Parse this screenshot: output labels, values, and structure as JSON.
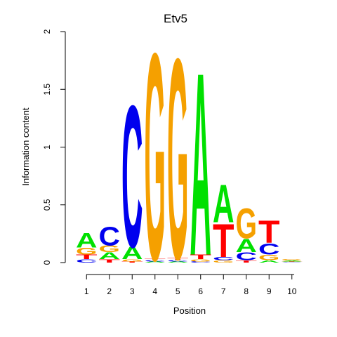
{
  "chart_data": {
    "type": "sequence-logo",
    "title": "Etv5",
    "xlabel": "Position",
    "ylabel": "Information content",
    "ylim": [
      0,
      2
    ],
    "yticks": [
      {
        "value": 0,
        "label": "0"
      },
      {
        "value": 0.5,
        "label": "0.5"
      },
      {
        "value": 1,
        "label": "1"
      },
      {
        "value": 1.5,
        "label": "1.5"
      },
      {
        "value": 2,
        "label": "2"
      }
    ],
    "positions": [
      "1",
      "2",
      "3",
      "4",
      "5",
      "6",
      "7",
      "8",
      "9",
      "10"
    ],
    "colors": {
      "A": "#00e000",
      "C": "#0000ee",
      "G": "#f5a000",
      "T": "#ff0000"
    },
    "stacks": [
      [
        {
          "base": "C",
          "height": 0.03
        },
        {
          "base": "T",
          "height": 0.04
        },
        {
          "base": "G",
          "height": 0.06
        },
        {
          "base": "A",
          "height": 0.13
        }
      ],
      [
        {
          "base": "T",
          "height": 0.03
        },
        {
          "base": "A",
          "height": 0.06
        },
        {
          "base": "G",
          "height": 0.06
        },
        {
          "base": "C",
          "height": 0.17
        }
      ],
      [
        {
          "base": "T",
          "height": 0.01
        },
        {
          "base": "G",
          "height": 0.02
        },
        {
          "base": "A",
          "height": 0.11
        },
        {
          "base": "C",
          "height": 1.28
        }
      ],
      [
        {
          "base": "A",
          "height": 0.01
        },
        {
          "base": "C",
          "height": 0.01
        },
        {
          "base": "T",
          "height": 0.01
        },
        {
          "base": "G",
          "height": 1.87
        }
      ],
      [
        {
          "base": "A",
          "height": 0.01
        },
        {
          "base": "C",
          "height": 0.01
        },
        {
          "base": "T",
          "height": 0.02
        },
        {
          "base": "G",
          "height": 1.81
        }
      ],
      [
        {
          "base": "C",
          "height": 0.01
        },
        {
          "base": "G",
          "height": 0.02
        },
        {
          "base": "T",
          "height": 0.04
        },
        {
          "base": "A",
          "height": 1.65
        }
      ],
      [
        {
          "base": "G",
          "height": 0.02
        },
        {
          "base": "C",
          "height": 0.03
        },
        {
          "base": "T",
          "height": 0.3
        },
        {
          "base": "A",
          "height": 0.34
        }
      ],
      [
        {
          "base": "T",
          "height": 0.02
        },
        {
          "base": "C",
          "height": 0.07
        },
        {
          "base": "A",
          "height": 0.12
        },
        {
          "base": "G",
          "height": 0.27
        }
      ],
      [
        {
          "base": "A",
          "height": 0.02
        },
        {
          "base": "G",
          "height": 0.05
        },
        {
          "base": "C",
          "height": 0.1
        },
        {
          "base": "T",
          "height": 0.2
        }
      ],
      [
        {
          "base": "C",
          "height": 0.005
        },
        {
          "base": "T",
          "height": 0.005
        },
        {
          "base": "A",
          "height": 0.008
        },
        {
          "base": "G",
          "height": 0.01
        }
      ]
    ]
  }
}
